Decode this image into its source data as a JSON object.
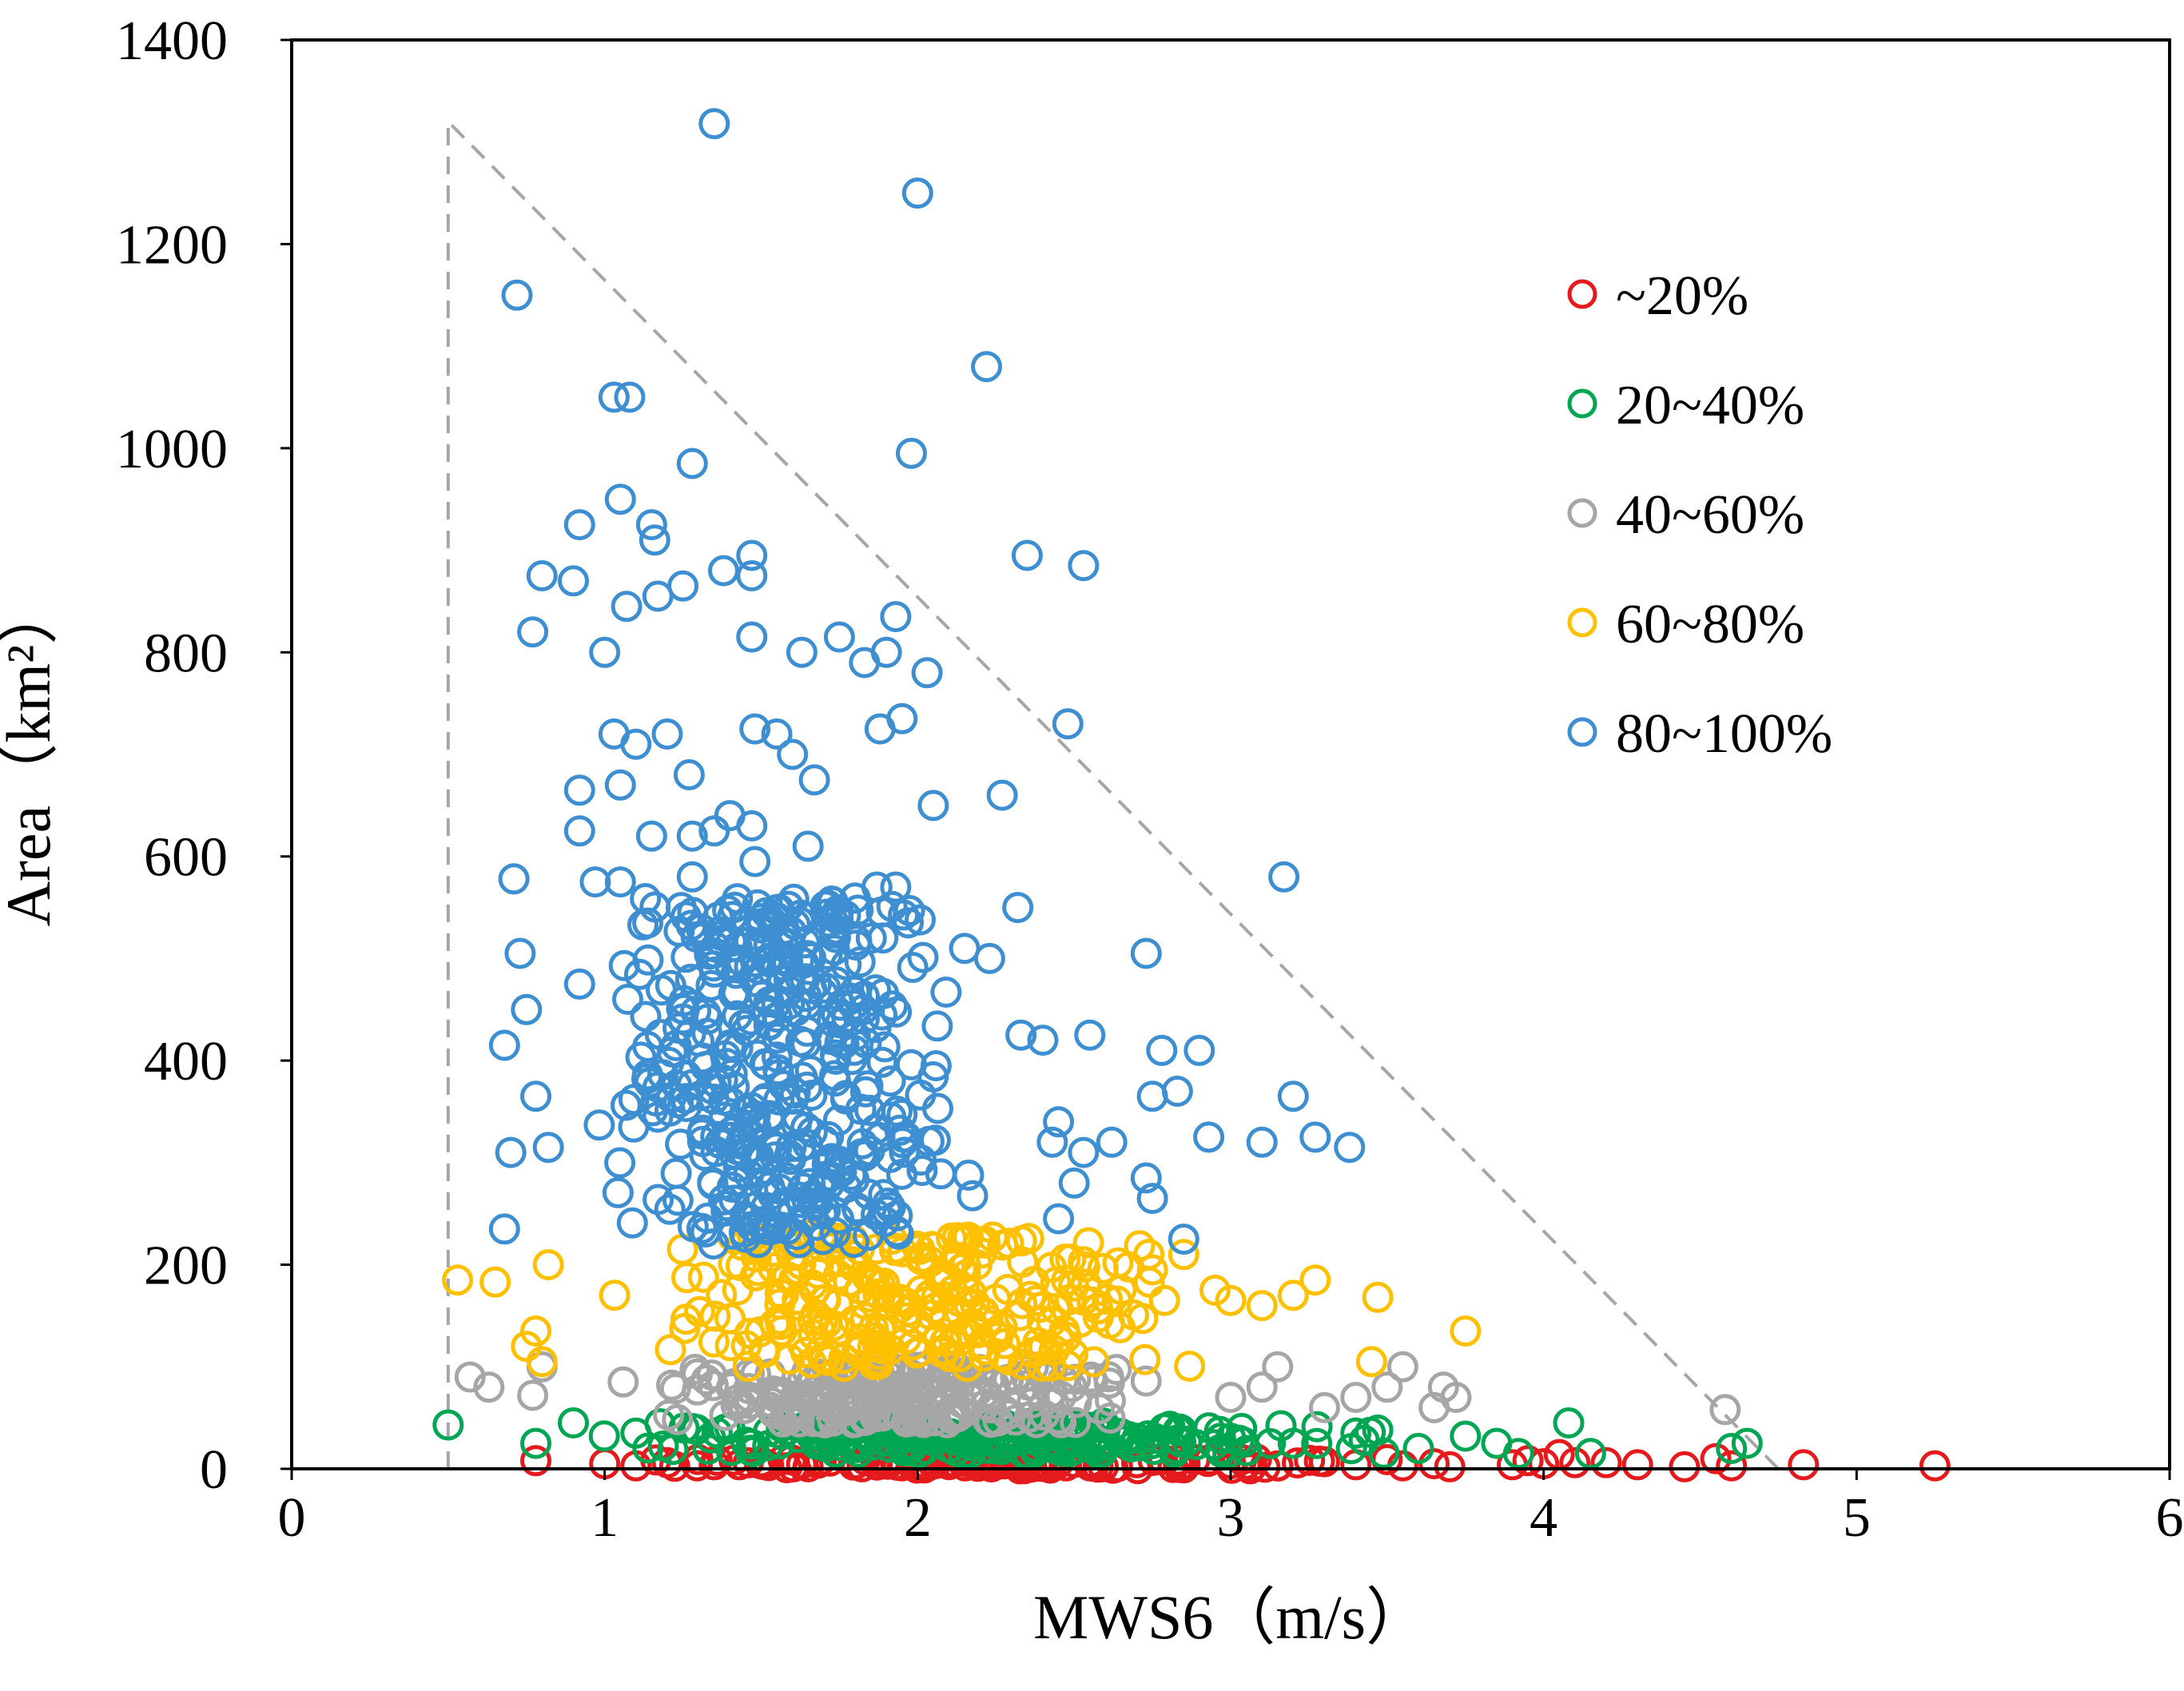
{
  "chart_data": {
    "type": "scatter",
    "title": "",
    "xlabel": "MWS6（m/s）",
    "ylabel": "Area（km²）",
    "xlim": [
      0,
      6
    ],
    "ylim": [
      0,
      1400
    ],
    "x_ticks": [
      0,
      1,
      2,
      3,
      4,
      5,
      6
    ],
    "y_ticks": [
      0,
      200,
      400,
      600,
      800,
      1000,
      1200,
      1400
    ],
    "x_tick_labels": [
      "0",
      "1",
      "2",
      "3",
      "4",
      "5",
      "6"
    ],
    "y_tick_labels": [
      "0",
      "200",
      "400",
      "600",
      "800",
      "1000",
      "1200",
      "1400"
    ],
    "grid": false,
    "legend_position": "top-right",
    "envelope": {
      "style": "dashed",
      "color": "#a6a6a6",
      "points": [
        [
          0.5,
          0
        ],
        [
          0.5,
          1320
        ],
        [
          4.75,
          0
        ],
        [
          0.5,
          0
        ]
      ]
    },
    "series": [
      {
        "name": "~20%",
        "color": "#e41a1c",
        "points": [
          [
            0.78,
            8
          ],
          [
            1.0,
            5
          ],
          [
            1.1,
            3
          ],
          [
            1.2,
            6
          ],
          [
            1.35,
            4
          ],
          [
            1.5,
            7
          ],
          [
            1.65,
            2
          ],
          [
            1.8,
            5
          ],
          [
            1.95,
            3
          ],
          [
            2.1,
            6
          ],
          [
            2.25,
            4
          ],
          [
            2.4,
            5
          ],
          [
            2.55,
            3
          ],
          [
            2.7,
            6
          ],
          [
            2.85,
            4
          ],
          [
            3.0,
            5
          ],
          [
            3.15,
            3
          ],
          [
            3.3,
            7
          ],
          [
            3.4,
            4
          ],
          [
            3.5,
            9
          ],
          [
            3.55,
            3
          ],
          [
            3.65,
            5
          ],
          [
            3.7,
            2
          ],
          [
            3.9,
            4
          ],
          [
            3.95,
            8
          ],
          [
            4.0,
            5
          ],
          [
            4.05,
            14
          ],
          [
            4.1,
            6
          ],
          [
            4.2,
            6
          ],
          [
            4.3,
            4
          ],
          [
            4.45,
            2
          ],
          [
            4.55,
            10
          ],
          [
            4.6,
            3
          ],
          [
            4.83,
            4
          ],
          [
            5.25,
            3
          ]
        ],
        "extra_points": 110,
        "extra_x_range": [
          0.8,
          3.7
        ],
        "extra_y_range": [
          0,
          10
        ]
      },
      {
        "name": "20~40%",
        "color": "#00a651",
        "points": [
          [
            0.5,
            43
          ],
          [
            0.78,
            25
          ],
          [
            0.9,
            45
          ],
          [
            1.1,
            35
          ],
          [
            1.4,
            40
          ],
          [
            1.8,
            38
          ],
          [
            2.2,
            42
          ],
          [
            2.6,
            40
          ],
          [
            3.0,
            30
          ],
          [
            3.2,
            25
          ],
          [
            3.4,
            35
          ],
          [
            3.47,
            38
          ],
          [
            3.6,
            20
          ],
          [
            3.75,
            32
          ],
          [
            3.85,
            25
          ],
          [
            3.92,
            15
          ],
          [
            4.08,
            45
          ],
          [
            4.15,
            15
          ],
          [
            4.6,
            20
          ],
          [
            4.65,
            25
          ]
        ],
        "extra_points": 230,
        "extra_x_range": [
          0.85,
          3.6
        ],
        "extra_y_range": [
          15,
          45
        ]
      },
      {
        "name": "40~60%",
        "color": "#a6a6a6",
        "points": [
          [
            0.57,
            90
          ],
          [
            0.63,
            80
          ],
          [
            0.77,
            72
          ],
          [
            0.8,
            100
          ],
          [
            3.0,
            70
          ],
          [
            3.1,
            80
          ],
          [
            3.15,
            100
          ],
          [
            3.3,
            60
          ],
          [
            3.4,
            70
          ],
          [
            3.5,
            80
          ],
          [
            3.55,
            100
          ],
          [
            3.65,
            60
          ],
          [
            3.68,
            80
          ],
          [
            3.72,
            70
          ],
          [
            4.58,
            58
          ]
        ],
        "extra_points": 230,
        "extra_x_range": [
          0.9,
          2.95
        ],
        "extra_y_range": [
          45,
          100
        ]
      },
      {
        "name": "60~80%",
        "color": "#ffc000",
        "points": [
          [
            0.53,
            185
          ],
          [
            0.65,
            183
          ],
          [
            0.75,
            120
          ],
          [
            0.78,
            135
          ],
          [
            0.8,
            105
          ],
          [
            0.82,
            200
          ],
          [
            3.0,
            165
          ],
          [
            3.1,
            160
          ],
          [
            3.2,
            170
          ],
          [
            3.27,
            185
          ],
          [
            3.47,
            168
          ],
          [
            3.45,
            105
          ],
          [
            3.75,
            135
          ],
          [
            2.85,
            210
          ],
          [
            2.75,
            195
          ],
          [
            2.95,
            175
          ]
        ],
        "extra_points": 270,
        "extra_x_range": [
          0.82,
          3.05
        ],
        "extra_y_range": [
          100,
          230
        ]
      },
      {
        "name": "80~100%",
        "color": "#3d8fd1",
        "points": [
          [
            1.35,
            1318
          ],
          [
            2.0,
            1250
          ],
          [
            0.72,
            1150
          ],
          [
            2.22,
            1080
          ],
          [
            1.03,
            1050
          ],
          [
            1.08,
            1050
          ],
          [
            1.98,
            995
          ],
          [
            1.28,
            985
          ],
          [
            1.05,
            950
          ],
          [
            0.92,
            925
          ],
          [
            1.15,
            925
          ],
          [
            1.16,
            910
          ],
          [
            2.35,
            895
          ],
          [
            2.53,
            885
          ],
          [
            1.47,
            895
          ],
          [
            0.8,
            875
          ],
          [
            1.38,
            880
          ],
          [
            1.47,
            875
          ],
          [
            0.9,
            870
          ],
          [
            1.25,
            865
          ],
          [
            1.17,
            855
          ],
          [
            1.07,
            845
          ],
          [
            1.9,
            800
          ],
          [
            0.77,
            820
          ],
          [
            1.47,
            815
          ],
          [
            1.63,
            800
          ],
          [
            1.75,
            815
          ],
          [
            1.0,
            800
          ],
          [
            1.93,
            835
          ],
          [
            2.03,
            780
          ],
          [
            1.83,
            790
          ],
          [
            2.48,
            730
          ],
          [
            1.48,
            725
          ],
          [
            1.88,
            725
          ],
          [
            1.95,
            735
          ],
          [
            1.55,
            720
          ],
          [
            1.03,
            720
          ],
          [
            1.2,
            720
          ],
          [
            1.1,
            710
          ],
          [
            1.6,
            700
          ],
          [
            1.67,
            675
          ],
          [
            0.92,
            665
          ],
          [
            1.05,
            670
          ],
          [
            1.27,
            680
          ],
          [
            2.27,
            660
          ],
          [
            2.05,
            650
          ],
          [
            1.4,
            640
          ],
          [
            1.47,
            630
          ],
          [
            1.35,
            625
          ],
          [
            1.15,
            620
          ],
          [
            1.28,
            620
          ],
          [
            0.92,
            625
          ],
          [
            1.65,
            610
          ],
          [
            1.48,
            595
          ],
          [
            3.17,
            580
          ],
          [
            0.71,
            578
          ],
          [
            1.05,
            575
          ],
          [
            0.97,
            575
          ],
          [
            1.87,
            570
          ],
          [
            1.93,
            570
          ],
          [
            1.28,
            580
          ],
          [
            2.32,
            550
          ],
          [
            1.97,
            535
          ],
          [
            0.73,
            505
          ],
          [
            2.73,
            505
          ],
          [
            2.23,
            500
          ],
          [
            2.15,
            510
          ],
          [
            0.75,
            450
          ],
          [
            0.92,
            475
          ],
          [
            2.55,
            425
          ],
          [
            2.4,
            420
          ],
          [
            2.33,
            425
          ],
          [
            0.68,
            415
          ],
          [
            2.78,
            410
          ],
          [
            2.9,
            410
          ],
          [
            0.78,
            365
          ],
          [
            2.75,
            365
          ],
          [
            2.83,
            370
          ],
          [
            3.2,
            365
          ],
          [
            2.45,
            340
          ],
          [
            2.43,
            320
          ],
          [
            2.53,
            310
          ],
          [
            2.62,
            320
          ],
          [
            3.27,
            325
          ],
          [
            3.38,
            315
          ],
          [
            3.1,
            320
          ],
          [
            2.93,
            325
          ],
          [
            0.7,
            310
          ],
          [
            0.82,
            315
          ],
          [
            2.73,
            285
          ],
          [
            2.75,
            265
          ],
          [
            2.5,
            280
          ],
          [
            2.45,
            245
          ],
          [
            0.68,
            235
          ],
          [
            2.85,
            225
          ]
        ],
        "extra_points": 430,
        "extra_x_range": [
          0.85,
          2.3
        ],
        "extra_y_range": [
          220,
          560
        ]
      }
    ]
  }
}
